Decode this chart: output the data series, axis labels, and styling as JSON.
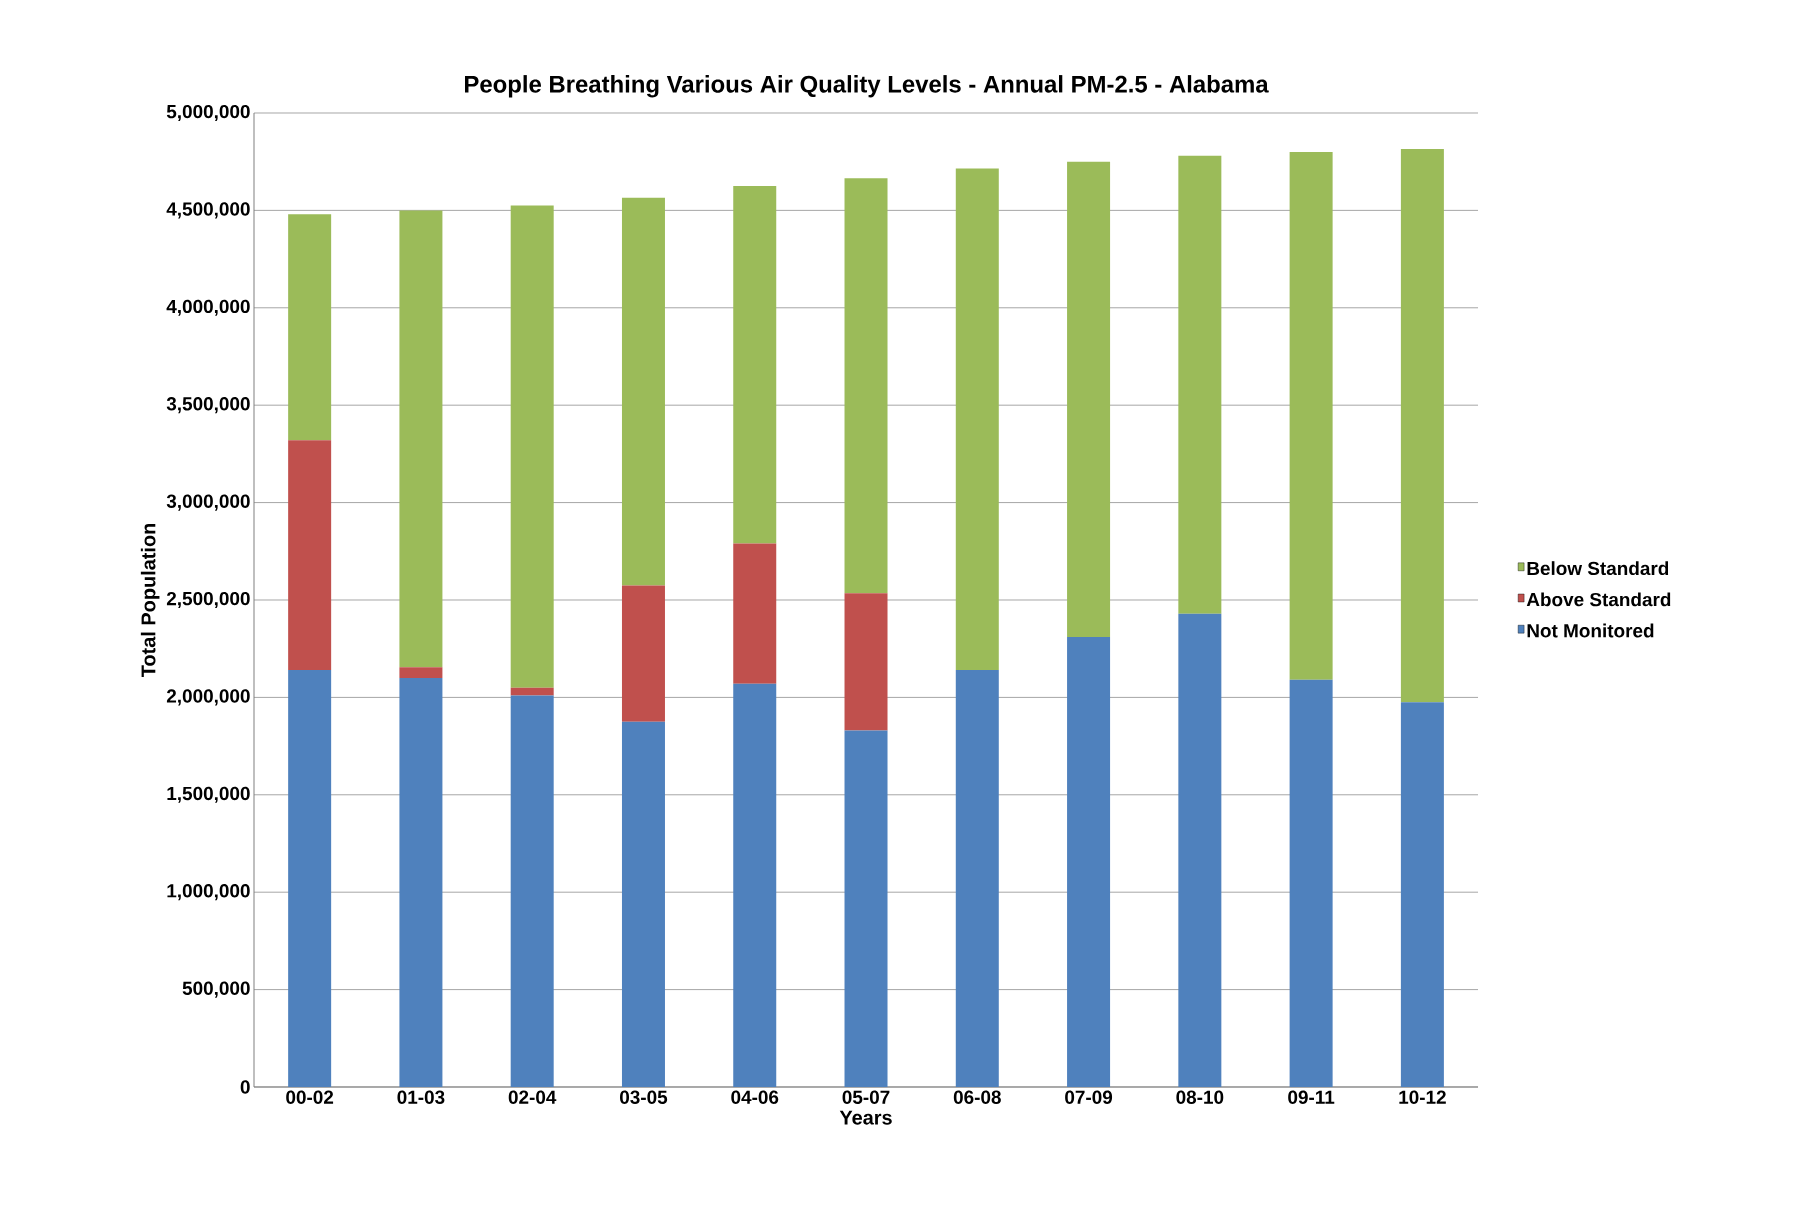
{
  "chart_data": {
    "type": "bar",
    "stacked": true,
    "title": "People Breathing Various Air Quality Levels - Annual PM-2.5 - Alabama",
    "xlabel": "Years",
    "ylabel": "Total Population",
    "categories": [
      "00-02",
      "01-03",
      "02-04",
      "03-05",
      "04-06",
      "05-07",
      "06-08",
      "07-09",
      "08-10",
      "09-11",
      "10-12"
    ],
    "series": [
      {
        "name": "Not Monitored",
        "color": "#4f81bd",
        "values": [
          2140000,
          2100000,
          2010000,
          1875000,
          2070000,
          1830000,
          2140000,
          2310000,
          2430000,
          2090000,
          1975000
        ]
      },
      {
        "name": "Above Standard",
        "color": "#c0504d",
        "values": [
          1180000,
          55000,
          40000,
          700000,
          720000,
          705000,
          0,
          0,
          0,
          0,
          0
        ]
      },
      {
        "name": "Below Standard",
        "color": "#9bbb59",
        "values": [
          1160000,
          2345000,
          2475000,
          1990000,
          1835000,
          2130000,
          2575000,
          2440000,
          2350000,
          2710000,
          2840000
        ]
      }
    ],
    "ylim": [
      0,
      5000000
    ],
    "yticks": [
      {
        "value": 0,
        "label": "0"
      },
      {
        "value": 500000,
        "label": "500,000"
      },
      {
        "value": 1000000,
        "label": "1,000,000"
      },
      {
        "value": 1500000,
        "label": "1,500,000"
      },
      {
        "value": 2000000,
        "label": "2,000,000"
      },
      {
        "value": 2500000,
        "label": "2,500,000"
      },
      {
        "value": 3000000,
        "label": "3,000,000"
      },
      {
        "value": 3500000,
        "label": "3,500,000"
      },
      {
        "value": 4000000,
        "label": "4,000,000"
      },
      {
        "value": 4500000,
        "label": "4,500,000"
      },
      {
        "value": 5000000,
        "label": "5,000,000"
      }
    ],
    "grid": "y",
    "legend": "right"
  }
}
